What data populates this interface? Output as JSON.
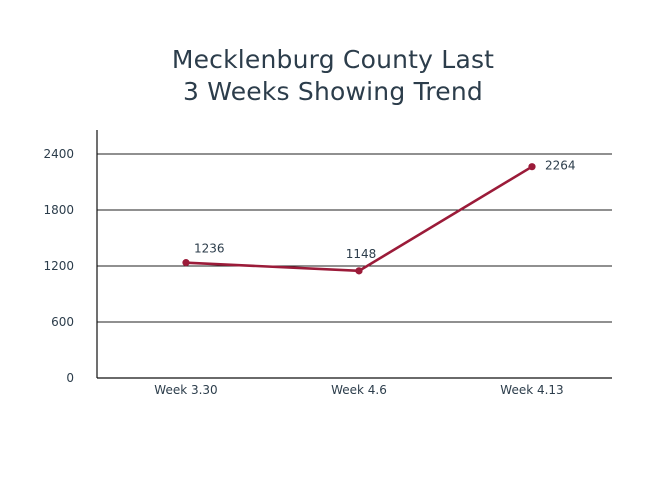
{
  "chart_data": {
    "type": "line",
    "title_lines": [
      "Mecklenburg County Last",
      "3 Weeks Showing Trend"
    ],
    "categories": [
      "Week 3.30",
      "Week 4.6",
      "Week 4.13"
    ],
    "series": [
      {
        "values": [
          1236,
          1148,
          2264
        ],
        "color": "#9b1b39"
      }
    ],
    "data_labels": [
      "1236",
      "1148",
      "2264"
    ],
    "y_ticks": [
      0,
      600,
      1200,
      1800,
      2400
    ],
    "ylim": [
      0,
      2600
    ],
    "grid": true,
    "legend": "none",
    "axis_color": "#111111",
    "text_color": "#2c3d4b"
  }
}
